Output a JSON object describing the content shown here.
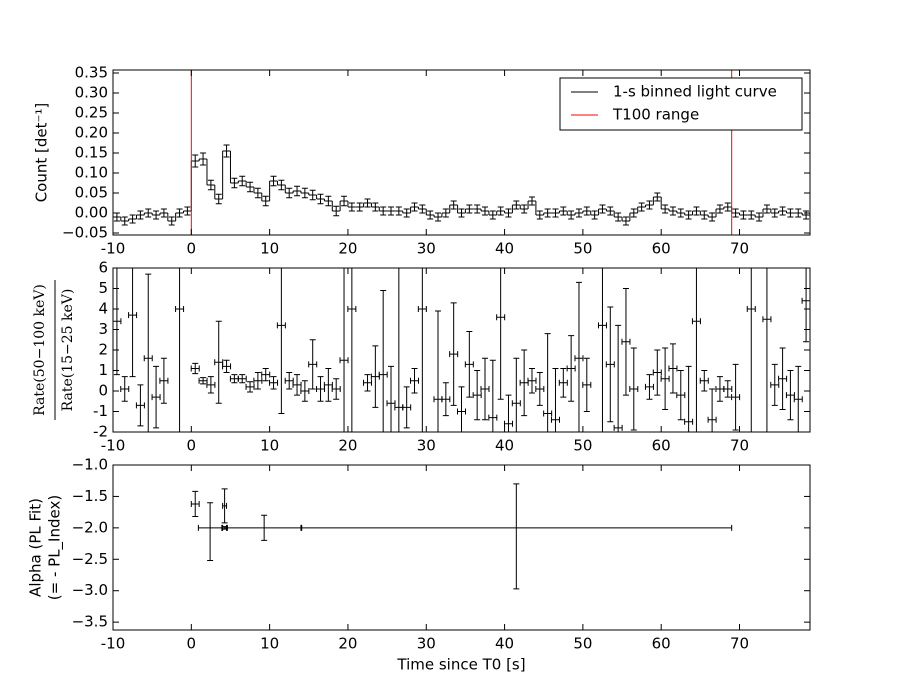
{
  "chart_data": [
    {
      "type": "step",
      "ylabel": "Count [det⁻¹]",
      "legend": "upper right",
      "xlim": [
        -10,
        79
      ],
      "ylim": [
        -0.055,
        0.3575
      ],
      "xticks": [
        -10,
        0,
        10,
        20,
        30,
        40,
        50,
        60,
        70
      ],
      "yticks": [
        {
          "value": 0.35,
          "label": "0.35"
        },
        {
          "value": 0.3,
          "label": "0.30"
        },
        {
          "value": 0.25,
          "label": "0.25"
        },
        {
          "value": 0.2,
          "label": "0.20"
        },
        {
          "value": 0.15,
          "label": "0.15"
        },
        {
          "value": 0.1,
          "label": "0.10"
        },
        {
          "value": 0.05,
          "label": "0.05"
        },
        {
          "value": 0,
          "label": "0.00"
        },
        {
          "value": -0.05,
          "label": "−0.05"
        }
      ],
      "series": [
        {
          "name": "1-s binned light curve",
          "color": "#000000",
          "x": [
            -9.5,
            -8.5,
            -7.5,
            -6.5,
            -5.5,
            -4.5,
            -3.5,
            -2.5,
            -1.5,
            -0.5,
            0.5,
            1.5,
            2.5,
            3.5,
            4.5,
            5.5,
            6.5,
            7.5,
            8.5,
            9.5,
            10.5,
            11.5,
            12.5,
            13.5,
            14.5,
            15.5,
            16.5,
            17.5,
            18.5,
            19.5,
            20.5,
            21.5,
            22.5,
            23.5,
            24.5,
            25.5,
            26.5,
            27.5,
            28.5,
            29.5,
            30.5,
            31.5,
            32.5,
            33.5,
            34.5,
            35.5,
            36.5,
            37.5,
            38.5,
            39.5,
            40.5,
            41.5,
            42.5,
            43.5,
            44.5,
            45.5,
            46.5,
            47.5,
            48.5,
            49.5,
            50.5,
            51.5,
            52.5,
            53.5,
            54.5,
            55.5,
            56.5,
            57.5,
            58.5,
            59.5,
            60.5,
            61.5,
            62.5,
            63.5,
            64.5,
            65.5,
            66.5,
            67.5,
            68.5,
            69.5,
            70.5,
            71.5,
            72.5,
            73.5,
            74.5,
            75.5,
            76.5,
            77.5,
            78.5
          ],
          "values": [
            -0.01,
            -0.02,
            -0.015,
            -0.005,
            0.0,
            -0.005,
            0.0,
            -0.02,
            0.0,
            0.005,
            0.13,
            0.135,
            0.07,
            0.035,
            0.155,
            0.075,
            0.08,
            0.065,
            0.05,
            0.03,
            0.08,
            0.07,
            0.05,
            0.055,
            0.05,
            0.045,
            0.035,
            0.03,
            0.005,
            0.03,
            0.015,
            0.015,
            0.025,
            0.015,
            0.005,
            0.005,
            0.005,
            0.0,
            0.015,
            0.01,
            -0.005,
            -0.01,
            0.0,
            0.02,
            0.0,
            0.01,
            0.01,
            0.005,
            -0.005,
            0.005,
            0.0,
            0.02,
            0.01,
            0.03,
            -0.005,
            0.0,
            0.0,
            0.005,
            -0.005,
            0.0,
            0.005,
            -0.005,
            0.01,
            0.005,
            -0.01,
            -0.02,
            0.0,
            0.015,
            0.02,
            0.04,
            0.01,
            0.005,
            0.0,
            -0.005,
            0.005,
            -0.005,
            -0.01,
            0.01,
            0.015,
            0.0,
            -0.005,
            -0.005,
            -0.01,
            0.01,
            0.0,
            0.005,
            0.0,
            0.0,
            -0.005
          ],
          "errors": [
            0.01,
            0.01,
            0.01,
            0.01,
            0.01,
            0.01,
            0.01,
            0.01,
            0.01,
            0.01,
            0.015,
            0.015,
            0.012,
            0.012,
            0.015,
            0.012,
            0.012,
            0.012,
            0.012,
            0.012,
            0.012,
            0.012,
            0.012,
            0.012,
            0.012,
            0.012,
            0.012,
            0.012,
            0.012,
            0.012,
            0.01,
            0.01,
            0.01,
            0.01,
            0.01,
            0.01,
            0.01,
            0.01,
            0.01,
            0.01,
            0.01,
            0.01,
            0.01,
            0.01,
            0.01,
            0.01,
            0.01,
            0.01,
            0.01,
            0.01,
            0.01,
            0.01,
            0.01,
            0.01,
            0.01,
            0.01,
            0.01,
            0.01,
            0.01,
            0.01,
            0.01,
            0.01,
            0.01,
            0.01,
            0.01,
            0.01,
            0.01,
            0.01,
            0.01,
            0.01,
            0.01,
            0.01,
            0.01,
            0.01,
            0.01,
            0.01,
            0.01,
            0.01,
            0.01,
            0.01,
            0.01,
            0.01,
            0.01,
            0.01,
            0.01,
            0.01,
            0.01,
            0.01,
            0.01
          ]
        }
      ],
      "vlines": {
        "name": "T100 range",
        "color": "#ff0000",
        "values": [
          0,
          69
        ]
      }
    },
    {
      "type": "errorbar",
      "ylabel": {
        "numerator": "Rate(50−100 keV)",
        "denominator": "Rate(15−25 keV)"
      },
      "xlim": [
        -10,
        79
      ],
      "ylim": [
        -2,
        6
      ],
      "xticks": [
        -10,
        0,
        10,
        20,
        30,
        40,
        50,
        60,
        70
      ],
      "yticks": [
        -2,
        -1,
        0,
        1,
        2,
        3,
        4,
        5,
        6
      ],
      "series": [
        {
          "color": "#000000",
          "x": [
            -9.5,
            -8.5,
            -7.5,
            -6.5,
            -5.5,
            -4.5,
            -3.5,
            -1.5,
            0.5,
            1.5,
            2.5,
            3.5,
            4.5,
            5.5,
            6.5,
            7.5,
            8.5,
            9.5,
            10.5,
            11.5,
            12.5,
            13.5,
            14.5,
            15.5,
            16.5,
            17.5,
            18.5,
            19.5,
            20.5,
            22.5,
            23.5,
            24.5,
            25.5,
            26.5,
            27.5,
            28.5,
            29.5,
            31.5,
            32.5,
            33.5,
            34.5,
            35.5,
            36.5,
            37.5,
            38.5,
            39.5,
            40.5,
            41.5,
            42.5,
            43.5,
            44.5,
            45.5,
            46.5,
            47.5,
            48.5,
            49.5,
            50.5,
            52.5,
            53.5,
            54.5,
            55.5,
            56.5,
            58.5,
            59.5,
            60.5,
            61.5,
            62.5,
            63.5,
            64.5,
            65.5,
            66.5,
            67.5,
            68.5,
            69.5,
            71.5,
            73.5,
            74.5,
            75.5,
            76.5,
            77.5,
            78.5
          ],
          "values": [
            3.4,
            0.1,
            3.7,
            -0.7,
            1.6,
            -0.3,
            0.5,
            4,
            1.1,
            0.5,
            0.3,
            1.4,
            1.2,
            0.6,
            0.6,
            0.2,
            0.5,
            0.8,
            0.4,
            3.2,
            0.5,
            0.3,
            0.0,
            1.3,
            0.1,
            0.3,
            0.1,
            1.5,
            4,
            0.4,
            0.7,
            0.8,
            -0.6,
            -0.8,
            -0.8,
            0.5,
            4,
            -0.4,
            -0.4,
            1.8,
            -1.0,
            1.3,
            -0.2,
            0.1,
            -1.3,
            3.6,
            -1.6,
            -0.6,
            0.4,
            0.5,
            0.1,
            -1.1,
            -1.4,
            0.4,
            1.1,
            1.6,
            0.3,
            3.2,
            1.3,
            -1.8,
            2.4,
            0.1,
            0.2,
            0.9,
            0.6,
            1.1,
            -0.2,
            -1.5,
            3.4,
            0.5,
            -1.4,
            0.1,
            0.1,
            -0.3,
            4,
            3.5,
            0.3,
            0.6,
            -0.2,
            -0.4,
            4.4
          ],
          "errors": [
            2.6,
            0.6,
            3.0,
            1.0,
            4.1,
            1.5,
            1.1,
            10,
            0.25,
            0.15,
            0.4,
            2.0,
            0.3,
            0.2,
            0.2,
            0.25,
            0.4,
            0.3,
            0.3,
            4.3,
            0.4,
            0.5,
            0.5,
            1.2,
            0.6,
            0.8,
            0.5,
            8,
            10,
            0.4,
            1.5,
            4.1,
            1.8,
            8,
            1.0,
            0.6,
            10,
            4.3,
            0.8,
            2.5,
            1.2,
            1.6,
            1.2,
            1.5,
            2.8,
            4,
            1.4,
            2.2,
            1.6,
            0.6,
            0.8,
            3.9,
            2.5,
            0.7,
            1.6,
            3.7,
            1.3,
            6,
            2.8,
            5,
            2.6,
            2.0,
            0.6,
            1.1,
            1.5,
            1.2,
            1.2,
            2.7,
            6,
            0.5,
            1.5,
            0.6,
            0.4,
            1.6,
            10,
            6,
            1.0,
            1.5,
            1.2,
            1.6,
            2
          ]
        }
      ]
    },
    {
      "type": "errorbar",
      "ylabel": [
        "Alpha (PL Fit)",
        "(= - PL_Index)"
      ],
      "xlabel": "Time since T0 [s]",
      "xlim": [
        -10,
        79
      ],
      "ylim": [
        -3.625,
        -1.0
      ],
      "xticks": [
        -10,
        0,
        10,
        20,
        30,
        40,
        50,
        60,
        70
      ],
      "yticks": [
        {
          "value": -1.0,
          "label": "−1.0"
        },
        {
          "value": -1.5,
          "label": "−1.5"
        },
        {
          "value": -2.0,
          "label": "−2.0"
        },
        {
          "value": -2.5,
          "label": "−2.5"
        },
        {
          "value": -3.0,
          "label": "−3.0"
        },
        {
          "value": -3.5,
          "label": "−3.5"
        }
      ],
      "series": [
        {
          "color": "#000000",
          "x": [
            0.5,
            2.4,
            4.25,
            4.3,
            9.3,
            41.5
          ],
          "xerr": [
            0.5,
            1.5,
            0.25,
            0.3,
            4.8,
            27.5
          ],
          "values": [
            -1.62,
            -2.0,
            -1.65,
            -2.0,
            -2.0,
            -2.0
          ],
          "errors": [
            [
              0.2,
              0.2
            ],
            [
              0.52,
              0.4
            ],
            [
              0.27,
              0.27
            ],
            [
              0.02,
              0.02
            ],
            [
              0.2,
              0.2
            ],
            [
              0.97,
              0.7
            ]
          ]
        }
      ]
    }
  ]
}
